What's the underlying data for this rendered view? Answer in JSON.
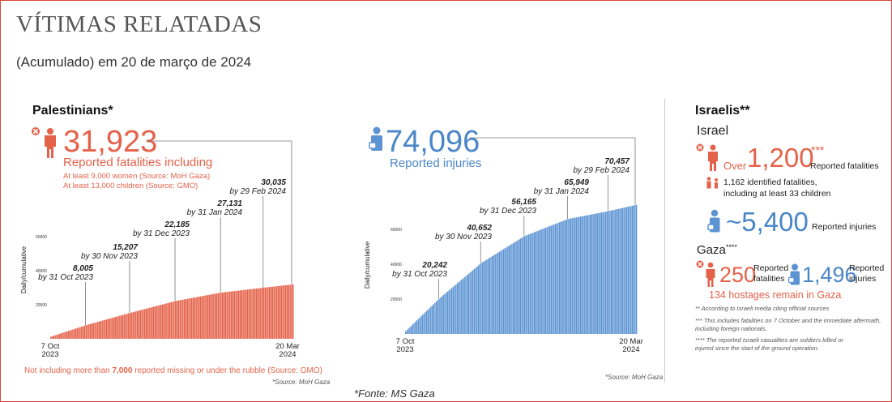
{
  "header": {
    "title": "VÍTIMAS RELATADAS",
    "subtitle": "(Acumulado) em 20 de março de 2024"
  },
  "palestinians": {
    "heading": "Palestinians*",
    "fatalities": "31,923",
    "fatalities_label": "Reported fatalities including",
    "women_note": "At least 9,000 women (Source: MoH Gaza)",
    "children_note": "At least 13,000 children (Source: GMO)",
    "missing_note_pre": "Not including more than ",
    "missing_note_bold": "7,000",
    "missing_note_post": " reported missing or under the rubble (Source: GMO)",
    "source": "*Source: MoH Gaza",
    "injuries": "74,096",
    "injuries_label": "Reported injuries",
    "injuries_source": "*Source: MoH Gaza"
  },
  "israelis": {
    "heading": "Israelis**",
    "israel_heading": "Israel",
    "over": "Over",
    "fatalities": "1,200",
    "fatalities_stars": "***",
    "fatalities_label": "Reported fatalities",
    "identified_line1": "1,162 identified fatalities,",
    "identified_line2": "including at least 33 children",
    "injuries": "~5,400",
    "injuries_label": "Reported injuries",
    "gaza_heading": "Gaza",
    "gaza_stars": "****",
    "gaza_fatalities": "250",
    "gaza_fatalities_label1": "Reported",
    "gaza_fatalities_label2": "fatalities",
    "gaza_injuries": "1,496",
    "gaza_injuries_label1": "Reported",
    "gaza_injuries_label2": "injuries",
    "hostages": "134 hostages remain in Gaza",
    "note1": "** According to Israeli media citing official sources",
    "note2a": "*** This includes fatalities on 7 October and the immediate aftermath,",
    "note2b": "including foreign nationals.",
    "note3a": "**** The reported Israeli casualties are soldiers killed or",
    "note3b": "injured since the start of the ground operation."
  },
  "footer": {
    "source": "*Fonte: MS Gaza"
  },
  "colors": {
    "red": "#e4624a",
    "blue": "#5b93d3",
    "text": "#222222"
  },
  "chart_data": [
    {
      "type": "bar",
      "series": [
        {
          "name": "Reported fatalities",
          "color": "#e4624a"
        }
      ],
      "ylabel": "Daily/cumulative",
      "yticks": [
        20000,
        40000,
        60000
      ],
      "ylim": [
        0,
        80000
      ],
      "x_start": "7 Oct 2023",
      "x_end": "20 Mar 2024",
      "x_start_label": [
        "7 Oct",
        "2023"
      ],
      "x_end_label": [
        "20 Mar",
        "2024"
      ],
      "points": [
        {
          "date": "7 Oct 2023",
          "value": 1200
        },
        {
          "date": "31 Oct 2023",
          "value": 8005
        },
        {
          "date": "30 Nov 2023",
          "value": 15207
        },
        {
          "date": "31 Dec 2023",
          "value": 22185
        },
        {
          "date": "31 Jan 2024",
          "value": 27131
        },
        {
          "date": "29 Feb 2024",
          "value": 30035
        },
        {
          "date": "20 Mar 2024",
          "value": 31923
        }
      ],
      "annotations": [
        {
          "value": "8,005",
          "label": "by 31 Oct 2023"
        },
        {
          "value": "15,207",
          "label": "by 30 Nov 2023"
        },
        {
          "value": "22,185",
          "label": "by 31 Dec 2023"
        },
        {
          "value": "27,131",
          "label": "by 31 Jan 2024"
        },
        {
          "value": "30,035",
          "label": "by 29 Feb 2024"
        }
      ]
    },
    {
      "type": "bar",
      "series": [
        {
          "name": "Reported injuries",
          "color": "#5b93d3"
        }
      ],
      "ylabel": "Daily/cumulative",
      "yticks": [
        20000,
        40000,
        60000
      ],
      "ylim": [
        0,
        80000
      ],
      "x_start": "7 Oct 2023",
      "x_end": "20 Mar 2024",
      "x_start_label": [
        "7 Oct",
        "2023"
      ],
      "x_end_label": [
        "20 Mar",
        "2024"
      ],
      "points": [
        {
          "date": "7 Oct 2023",
          "value": 1500
        },
        {
          "date": "31 Oct 2023",
          "value": 20242
        },
        {
          "date": "30 Nov 2023",
          "value": 40652
        },
        {
          "date": "31 Dec 2023",
          "value": 56165
        },
        {
          "date": "31 Jan 2024",
          "value": 65949
        },
        {
          "date": "29 Feb 2024",
          "value": 70457
        },
        {
          "date": "20 Mar 2024",
          "value": 74096
        }
      ],
      "annotations": [
        {
          "value": "20,242",
          "label": "by 31 Oct 2023"
        },
        {
          "value": "40,652",
          "label": "by 30 Nov 2023"
        },
        {
          "value": "56,165",
          "label": "by 31 Dec 2023"
        },
        {
          "value": "65,949",
          "label": "by 31 Jan 2024"
        },
        {
          "value": "70,457",
          "label": "by 29 Feb 2024"
        }
      ]
    }
  ]
}
